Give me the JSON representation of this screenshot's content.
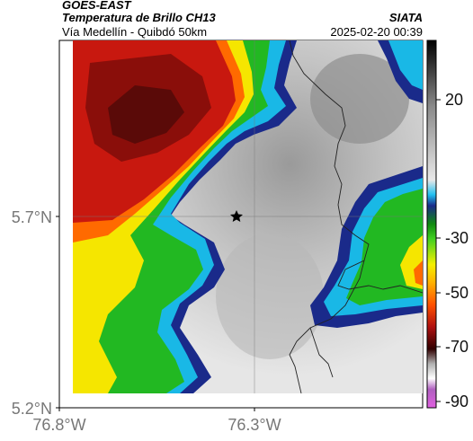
{
  "header": {
    "satellite": "GOES-EAST",
    "product": "Temperatura de Brillo CH13",
    "region": "Vía Medellín - Quibdó 50km",
    "org": "SIATA",
    "datetime": "2025-02-20 00:39"
  },
  "map": {
    "lat_ticks": [
      "5.7°N",
      "5.2°N"
    ],
    "lon_ticks": [
      "76.8°W",
      "76.3°W"
    ],
    "marker": "star",
    "colors": {
      "cold_core": "#5a0a08",
      "red": "#c8180f",
      "orange": "#ff6a00",
      "yellow": "#f5e600",
      "green": "#22b822",
      "cyan": "#19b8e6",
      "navy": "#1a2a8a",
      "gray_light": "#e8e8e8",
      "gray_mid": "#c4c4c4"
    }
  },
  "colorbar": {
    "labels": [
      "20",
      "-30",
      "-50",
      "-70",
      "-90"
    ]
  }
}
